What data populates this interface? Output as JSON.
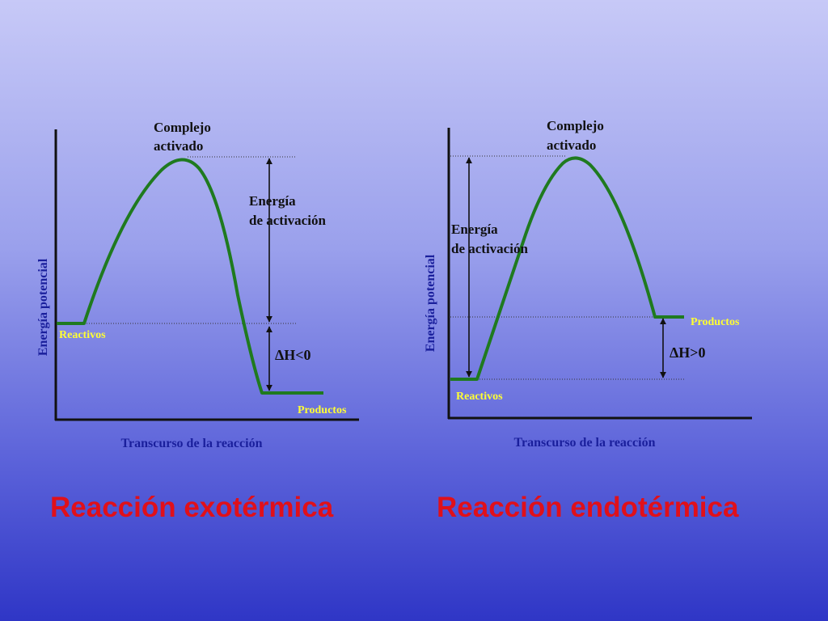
{
  "exothermic": {
    "y_axis_label": "Energía potencial",
    "x_axis_label": "Transcurso de la reacción",
    "complex_label_line1": "Complejo",
    "complex_label_line2": "activado",
    "activation_label_line1": "Energía",
    "activation_label_line2": "de activación",
    "reactants_label": "Reactivos",
    "products_label": "Productos",
    "delta_h_label": "ΔH<0",
    "title": "Reacción exotérmica"
  },
  "endothermic": {
    "y_axis_label": "Energía potencial",
    "x_axis_label": "Transcurso de la reacción",
    "complex_label_line1": "Complejo",
    "complex_label_line2": "activado",
    "activation_label_line1": "Energía",
    "activation_label_line2": "de activación",
    "reactants_label": "Reactivos",
    "products_label": "Productos",
    "delta_h_label": "ΔH>0",
    "title": "Reacción endotérmica"
  },
  "colors": {
    "curve": "#1f7a1f",
    "axes": "#111111",
    "title": "#e0101a",
    "axis_label": "#1a1f9c",
    "species_label": "#ffff33"
  }
}
